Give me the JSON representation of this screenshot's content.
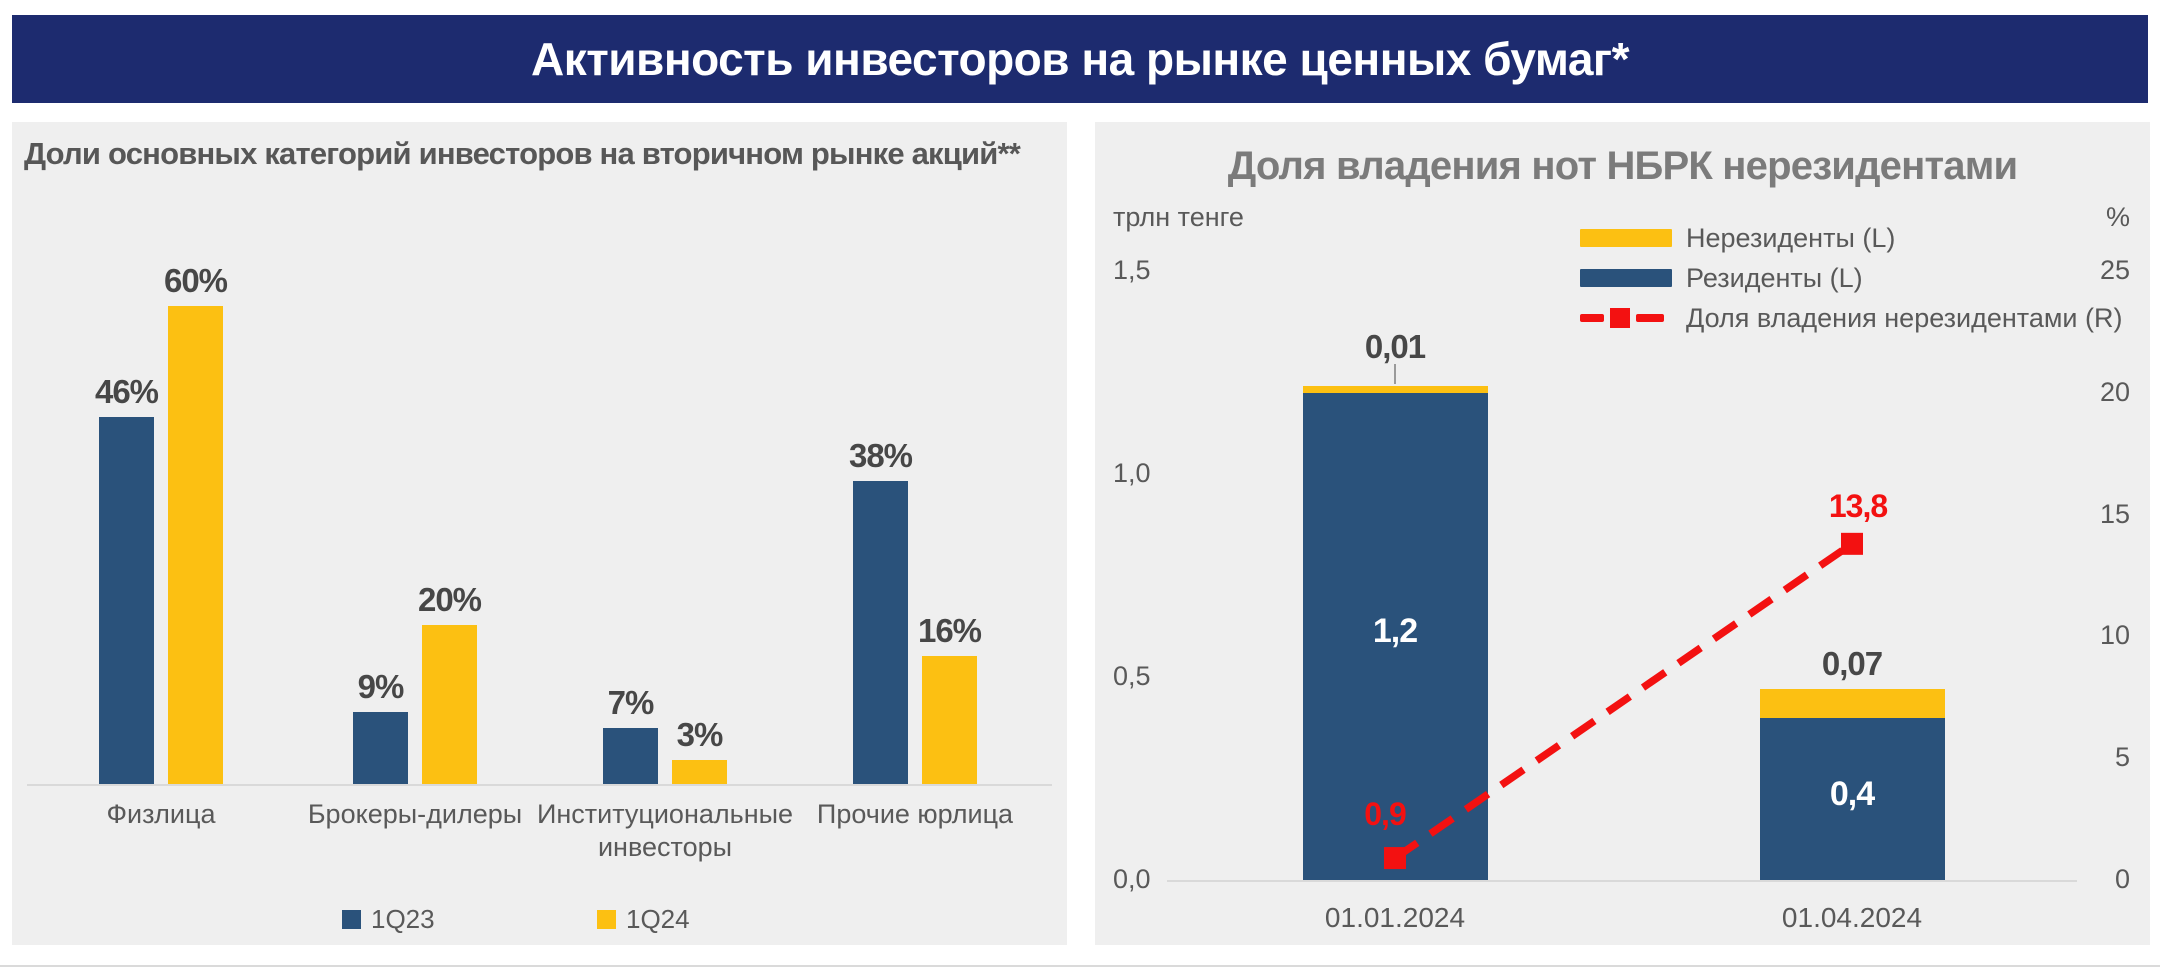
{
  "header": {
    "title": "Активность инвесторов на рынке ценных бумаг*"
  },
  "colors": {
    "header_bg": "#1d2b6f",
    "panel_bg": "#efefef",
    "navy": "#2a527b",
    "yellow": "#fcc012",
    "red": "#f31111",
    "axis_line": "#d9d9d9",
    "text_gray": "#595959"
  },
  "chart_data": [
    {
      "type": "bar",
      "title": "Доли основных категорий инвесторов на вторичном рынке акций**",
      "categories": [
        "Физлица",
        "Брокеры-дилеры",
        "Институциональные инвесторы",
        "Прочие юрлица"
      ],
      "series": [
        {
          "name": "1Q23",
          "color": "#2a527b",
          "values": [
            46,
            9,
            7,
            38
          ]
        },
        {
          "name": "1Q24",
          "color": "#fcc012",
          "values": [
            60,
            20,
            3,
            16
          ]
        }
      ],
      "value_suffix": "%",
      "ylim": [
        0,
        65
      ],
      "grid": false,
      "legend_position": "bottom"
    },
    {
      "type": "stacked-bar-line",
      "title": "Доля владения нот НБРК нерезидентами",
      "categories": [
        "01.01.2024",
        "01.04.2024"
      ],
      "left_axis": {
        "title": "трлн тенге",
        "ticks": [
          "1,5",
          "1,0",
          "0,5",
          "0,0"
        ],
        "range": [
          0,
          1.5
        ]
      },
      "right_axis": {
        "title": "%",
        "ticks": [
          "25",
          "20",
          "15",
          "10",
          "5",
          "0"
        ],
        "range": [
          0,
          25
        ]
      },
      "bar_series": [
        {
          "name": "Резиденты (L)",
          "color": "#2a527b",
          "values": [
            1.2,
            0.4
          ],
          "labels": [
            "1,2",
            "0,4"
          ],
          "label_style": "inside-white"
        },
        {
          "name": "Нерезиденты (L)",
          "color": "#fcc012",
          "values": [
            0.01,
            0.07
          ],
          "labels": [
            "0,01",
            "0,07"
          ],
          "label_style": "above"
        }
      ],
      "line_series": {
        "name": "Доля владения нерезидентами (R)",
        "color": "#f31111",
        "style": "dashed",
        "marker": "square",
        "axis": "right",
        "values": [
          0.9,
          13.8
        ],
        "labels": [
          "0,9",
          "13,8"
        ]
      },
      "grid": false,
      "legend_position": "top-right"
    }
  ]
}
